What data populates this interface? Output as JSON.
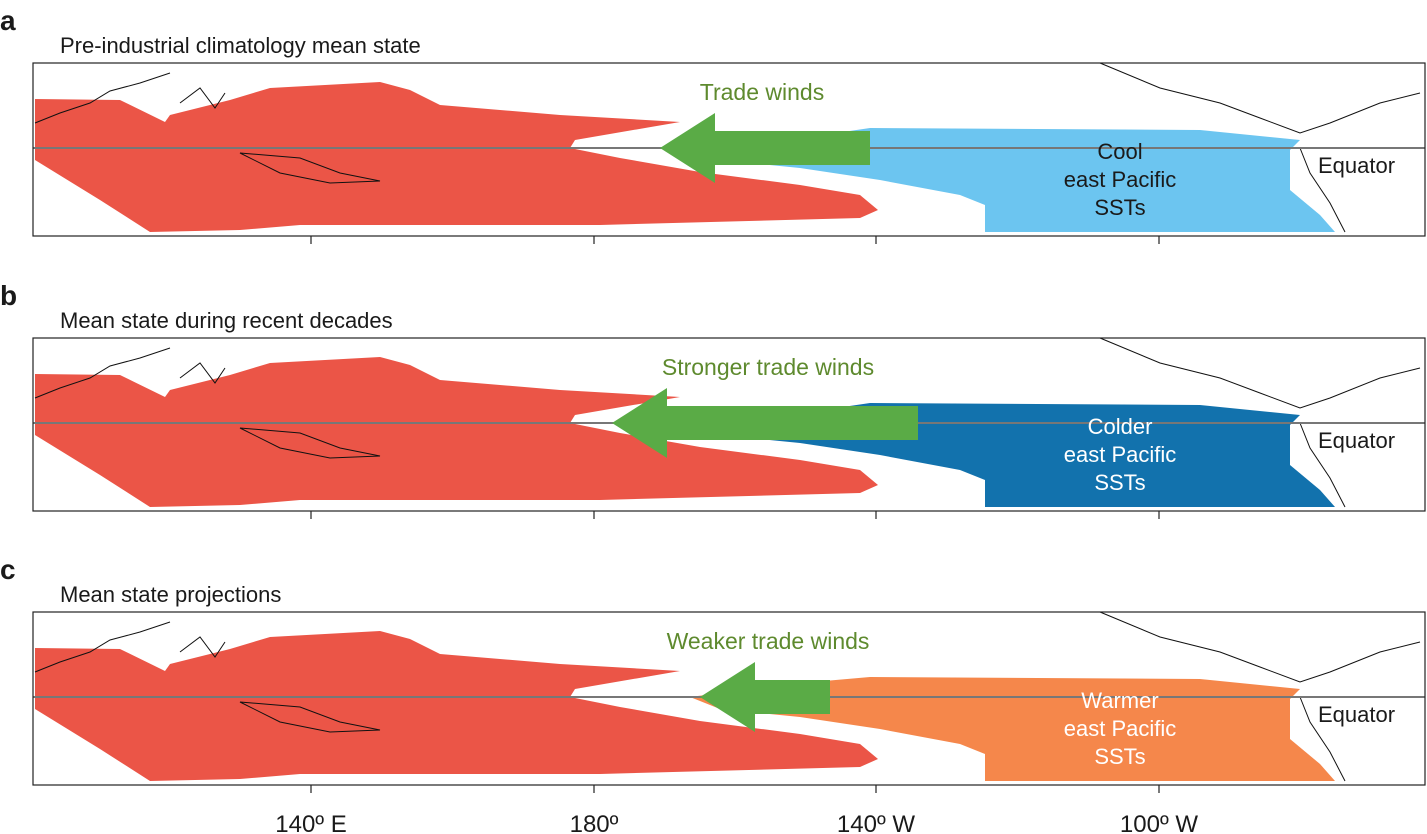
{
  "panels": [
    {
      "letter": "a",
      "title": "Pre-industrial climatology mean state",
      "wind_label": "Trade winds",
      "sst_label": [
        "Cool",
        "east Pacific",
        "SSTs"
      ],
      "equator_label": "Equator"
    },
    {
      "letter": "b",
      "title": "Mean state during recent decades",
      "wind_label": "Stronger trade winds",
      "sst_label": [
        "Colder",
        "east Pacific",
        "SSTs"
      ],
      "equator_label": "Equator"
    },
    {
      "letter": "c",
      "title": "Mean state projections",
      "wind_label": "Weaker trade winds",
      "sst_label": [
        "Warmer",
        "east Pacific",
        "SSTs"
      ],
      "equator_label": "Equator"
    }
  ],
  "x_axis": {
    "ticks": [
      "140º E",
      "180º",
      "140º W",
      "100º W"
    ]
  }
}
